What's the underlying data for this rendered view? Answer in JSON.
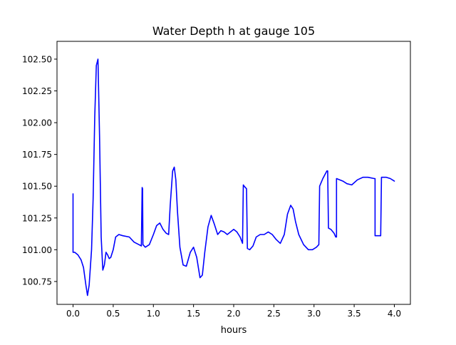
{
  "chart_data": {
    "type": "line",
    "title": "Water Depth h at gauge 105",
    "xlabel": "hours",
    "ylabel": "",
    "xlim": [
      -0.2,
      4.2
    ],
    "ylim": [
      100.57,
      102.64
    ],
    "x_ticks": [
      0.0,
      0.5,
      1.0,
      1.5,
      2.0,
      2.5,
      3.0,
      3.5,
      4.0
    ],
    "x_tick_labels": [
      "0.0",
      "0.5",
      "1.0",
      "1.5",
      "2.0",
      "2.5",
      "3.0",
      "3.5",
      "4.0"
    ],
    "y_ticks": [
      100.75,
      101.0,
      101.25,
      101.5,
      101.75,
      102.0,
      102.25,
      102.5
    ],
    "y_tick_labels": [
      "100.75",
      "101.00",
      "101.25",
      "101.50",
      "101.75",
      "102.00",
      "102.25",
      "102.50"
    ],
    "grid": false,
    "legend": "none",
    "series": [
      {
        "color": "#0000ff",
        "x": [
          0.0,
          0.0,
          0.02,
          0.06,
          0.1,
          0.13,
          0.16,
          0.18,
          0.2,
          0.23,
          0.25,
          0.27,
          0.29,
          0.31,
          0.33,
          0.35,
          0.37,
          0.39,
          0.41,
          0.43,
          0.45,
          0.47,
          0.5,
          0.53,
          0.57,
          0.62,
          0.7,
          0.76,
          0.82,
          0.85,
          0.86,
          0.865,
          0.87,
          0.9,
          0.95,
          1.0,
          1.04,
          1.08,
          1.12,
          1.16,
          1.19,
          1.21,
          1.24,
          1.26,
          1.28,
          1.3,
          1.33,
          1.37,
          1.41,
          1.46,
          1.5,
          1.54,
          1.58,
          1.61,
          1.64,
          1.68,
          1.72,
          1.76,
          1.8,
          1.84,
          1.88,
          1.92,
          1.96,
          2.0,
          2.04,
          2.08,
          2.11,
          2.12,
          2.13,
          2.16,
          2.17,
          2.2,
          2.24,
          2.28,
          2.33,
          2.38,
          2.43,
          2.48,
          2.53,
          2.58,
          2.63,
          2.67,
          2.71,
          2.74,
          2.77,
          2.81,
          2.87,
          2.93,
          2.98,
          3.03,
          3.06,
          3.07,
          3.07,
          3.11,
          3.16,
          3.17,
          3.18,
          3.21,
          3.25,
          3.27,
          3.28,
          3.28,
          3.36,
          3.41,
          3.47,
          3.54,
          3.61,
          3.67,
          3.75,
          3.76,
          3.76,
          3.82,
          3.83,
          3.84,
          3.9,
          3.95,
          4.0
        ],
        "y": [
          101.44,
          100.98,
          100.98,
          100.96,
          100.92,
          100.86,
          100.72,
          100.64,
          100.72,
          101.0,
          101.4,
          102.05,
          102.45,
          102.5,
          101.9,
          101.1,
          100.84,
          100.88,
          100.98,
          100.96,
          100.93,
          100.94,
          101.0,
          101.1,
          101.12,
          101.11,
          101.1,
          101.06,
          101.04,
          101.03,
          101.49,
          101.48,
          101.04,
          101.02,
          101.04,
          101.12,
          101.19,
          101.21,
          101.16,
          101.13,
          101.12,
          101.35,
          101.62,
          101.65,
          101.55,
          101.3,
          101.02,
          100.88,
          100.87,
          100.98,
          101.02,
          100.94,
          100.78,
          100.8,
          100.98,
          101.18,
          101.27,
          101.2,
          101.12,
          101.15,
          101.14,
          101.12,
          101.14,
          101.16,
          101.14,
          101.1,
          101.05,
          101.51,
          101.5,
          101.48,
          101.01,
          101.0,
          101.03,
          101.1,
          101.12,
          101.12,
          101.14,
          101.12,
          101.08,
          101.05,
          101.12,
          101.28,
          101.35,
          101.32,
          101.22,
          101.12,
          101.04,
          101.0,
          101.0,
          101.02,
          101.04,
          101.5,
          101.5,
          101.56,
          101.62,
          101.62,
          101.17,
          101.16,
          101.13,
          101.1,
          101.1,
          101.56,
          101.54,
          101.52,
          101.51,
          101.55,
          101.57,
          101.57,
          101.56,
          101.56,
          101.11,
          101.11,
          101.11,
          101.57,
          101.57,
          101.56,
          101.54
        ]
      }
    ]
  }
}
